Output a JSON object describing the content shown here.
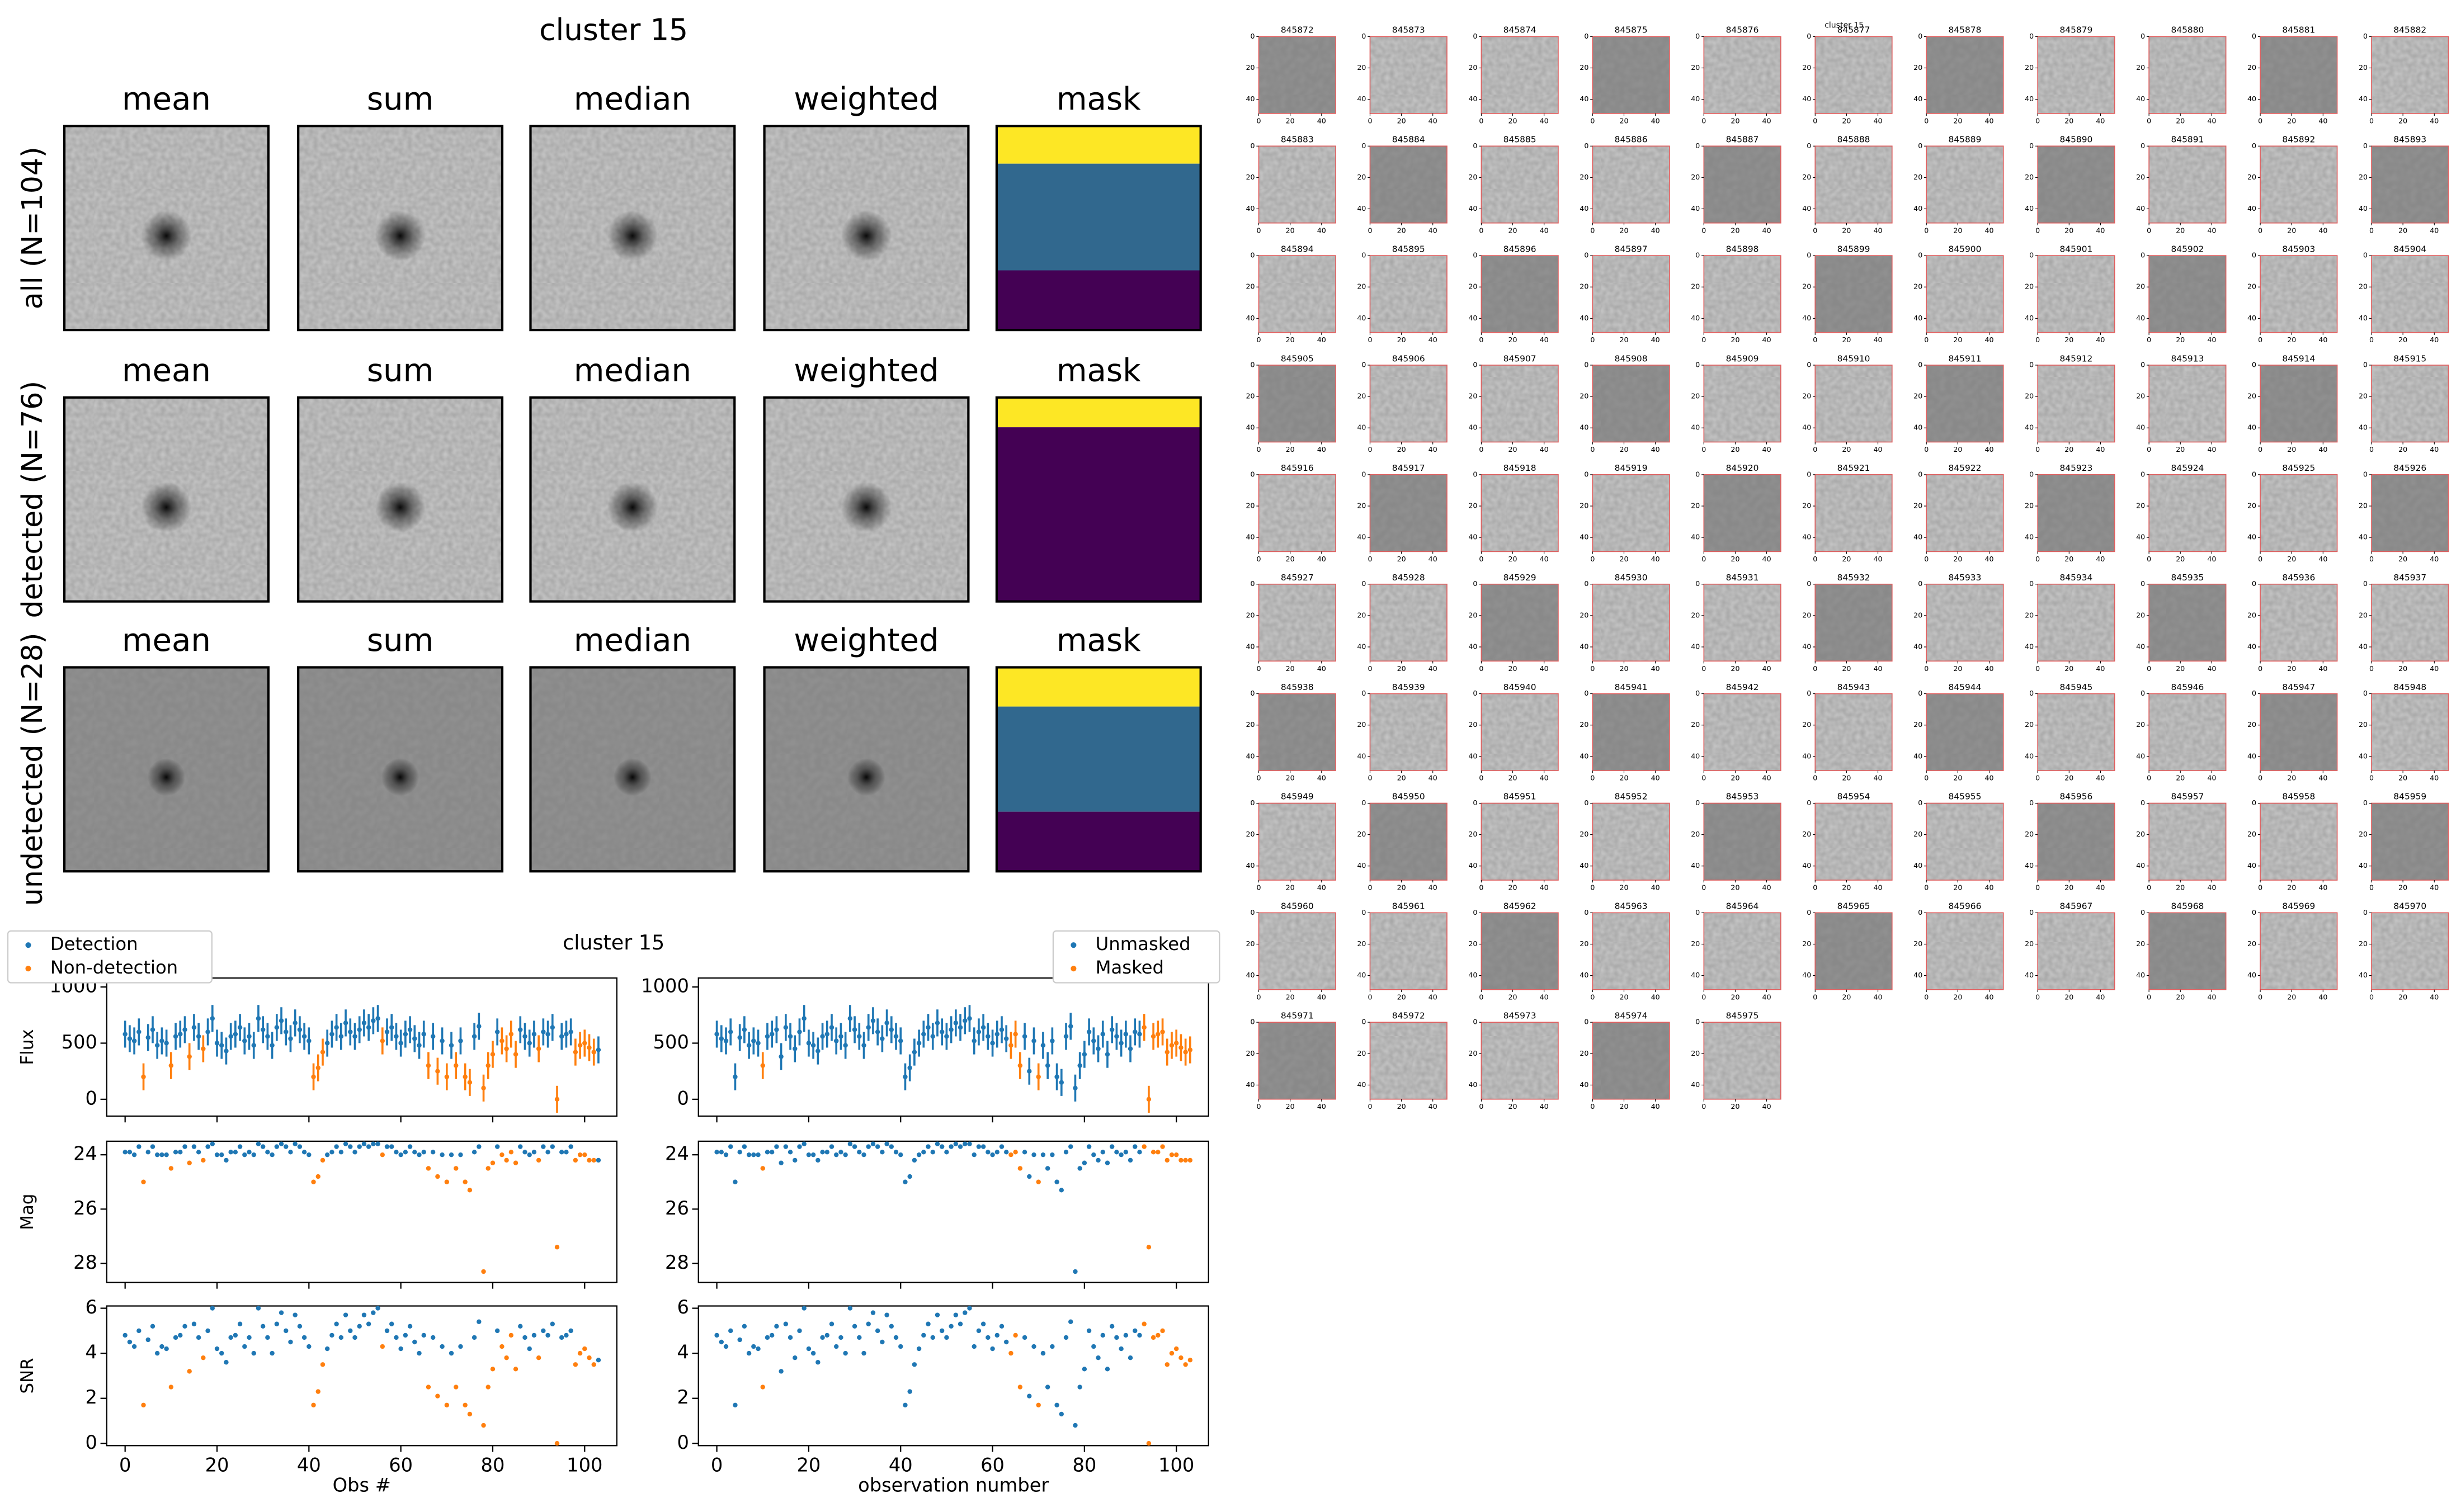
{
  "chart_data": [
    {
      "type": "stamp-grid",
      "title": "cluster 15",
      "columns": [
        "mean",
        "sum",
        "median",
        "weighted",
        "mask"
      ],
      "rows": [
        "all (N=104)",
        "detected (N=76)",
        "undetected (N=28)"
      ]
    },
    {
      "type": "errorbar-scatter",
      "title": "cluster 15",
      "x": [
        0,
        1,
        2,
        3,
        4,
        5,
        6,
        7,
        8,
        9,
        10,
        11,
        12,
        13,
        14,
        15,
        16,
        17,
        18,
        19,
        20,
        21,
        22,
        23,
        24,
        25,
        26,
        27,
        28,
        29,
        30,
        31,
        32,
        33,
        34,
        35,
        36,
        37,
        38,
        39,
        40,
        41,
        42,
        43,
        44,
        45,
        46,
        47,
        48,
        49,
        50,
        51,
        52,
        53,
        54,
        55,
        56,
        57,
        58,
        59,
        60,
        61,
        62,
        63,
        64,
        65,
        66,
        67,
        68,
        69,
        70,
        71,
        72,
        73,
        74,
        75,
        76,
        77,
        78,
        79,
        80,
        81,
        82,
        83,
        84,
        85,
        86,
        87,
        88,
        89,
        90,
        91,
        92,
        93,
        94,
        95,
        96,
        97,
        98,
        99,
        100,
        101,
        102,
        103
      ],
      "flux": [
        580,
        540,
        520,
        600,
        200,
        550,
        620,
        480,
        520,
        500,
        300,
        560,
        580,
        620,
        380,
        640,
        560,
        450,
        600,
        720,
        500,
        480,
        430,
        560,
        580,
        640,
        520,
        560,
        480,
        720,
        620,
        560,
        480,
        640,
        700,
        600,
        540,
        680,
        620,
        560,
        520,
        200,
        280,
        420,
        500,
        580,
        640,
        560,
        680,
        600,
        560,
        620,
        680,
        640,
        700,
        720,
        520,
        600,
        640,
        560,
        500,
        580,
        620,
        540,
        480,
        580,
        300,
        560,
        250,
        520,
        200,
        480,
        300,
        520,
        200,
        150,
        560,
        650,
        100,
        300,
        400,
        600,
        520,
        450,
        580,
        400,
        620,
        560,
        500,
        580,
        450,
        600,
        580,
        640,
        0,
        560,
        580,
        600,
        420,
        480,
        500,
        460,
        420,
        440
      ],
      "flux_err": [
        120,
        120,
        120,
        120,
        120,
        120,
        120,
        120,
        120,
        120,
        120,
        120,
        120,
        120,
        120,
        120,
        120,
        120,
        120,
        120,
        120,
        120,
        120,
        120,
        120,
        120,
        120,
        120,
        120,
        120,
        120,
        120,
        120,
        120,
        120,
        120,
        120,
        120,
        120,
        120,
        120,
        120,
        120,
        120,
        120,
        120,
        120,
        120,
        120,
        120,
        120,
        120,
        120,
        120,
        120,
        120,
        120,
        120,
        120,
        120,
        120,
        120,
        120,
        120,
        120,
        120,
        120,
        120,
        120,
        120,
        120,
        120,
        120,
        120,
        120,
        120,
        120,
        120,
        120,
        120,
        120,
        120,
        120,
        120,
        120,
        120,
        120,
        120,
        120,
        120,
        120,
        120,
        120,
        120,
        120,
        120,
        120,
        120,
        120,
        120,
        120,
        120,
        120,
        120
      ],
      "mag": [
        23.9,
        23.9,
        24.0,
        23.7,
        25.0,
        23.9,
        23.7,
        24.0,
        24.0,
        24.0,
        24.5,
        23.9,
        23.9,
        23.7,
        24.3,
        23.7,
        23.9,
        24.2,
        23.7,
        23.6,
        24.0,
        24.0,
        24.2,
        23.9,
        23.9,
        23.7,
        24.0,
        23.9,
        24.0,
        23.6,
        23.7,
        23.9,
        24.0,
        23.7,
        23.6,
        23.7,
        23.9,
        23.6,
        23.7,
        23.9,
        24.0,
        25.0,
        24.8,
        24.2,
        24.0,
        23.9,
        23.7,
        23.9,
        23.6,
        23.7,
        23.9,
        23.7,
        23.6,
        23.7,
        23.6,
        23.6,
        24.0,
        23.7,
        23.7,
        23.9,
        24.0,
        23.9,
        23.7,
        23.9,
        24.0,
        23.9,
        24.5,
        23.9,
        24.8,
        24.0,
        25.0,
        24.0,
        24.5,
        24.0,
        25.0,
        25.3,
        23.9,
        23.7,
        28.3,
        24.5,
        24.3,
        23.7,
        24.0,
        24.2,
        23.9,
        24.3,
        23.7,
        23.9,
        24.0,
        23.9,
        24.2,
        23.7,
        23.9,
        23.7,
        27.4,
        23.9,
        23.9,
        23.7,
        24.2,
        24.0,
        24.0,
        24.2,
        24.2,
        24.2
      ],
      "snr": [
        4.8,
        4.5,
        4.3,
        5.0,
        1.7,
        4.6,
        5.2,
        4.0,
        4.3,
        4.2,
        2.5,
        4.7,
        4.8,
        5.2,
        3.2,
        5.3,
        4.7,
        3.8,
        5.0,
        6.0,
        4.2,
        4.0,
        3.6,
        4.7,
        4.8,
        5.3,
        4.3,
        4.7,
        4.0,
        6.0,
        5.2,
        4.7,
        4.0,
        5.3,
        5.8,
        5.0,
        4.5,
        5.7,
        5.2,
        4.7,
        4.3,
        1.7,
        2.3,
        3.5,
        4.2,
        4.8,
        5.3,
        4.7,
        5.7,
        5.0,
        4.7,
        5.2,
        5.7,
        5.3,
        5.8,
        6.0,
        4.3,
        5.0,
        5.3,
        4.7,
        4.2,
        4.8,
        5.2,
        4.5,
        4.0,
        4.8,
        2.5,
        4.7,
        2.1,
        4.3,
        1.7,
        4.0,
        2.5,
        4.3,
        1.7,
        1.3,
        4.7,
        5.4,
        0.8,
        2.5,
        3.3,
        5.0,
        4.3,
        3.8,
        4.8,
        3.3,
        5.2,
        4.7,
        4.2,
        4.8,
        3.8,
        5.0,
        4.8,
        5.3,
        0,
        4.7,
        4.8,
        5.0,
        3.5,
        4.0,
        4.2,
        3.8,
        3.5,
        3.7
      ],
      "xlim": [
        -4,
        107
      ],
      "xticks": [
        0,
        20,
        40,
        60,
        80,
        100
      ],
      "flux_panel": {
        "ylabel": "Flux",
        "ylim": [
          -150,
          1080
        ],
        "yticks": [
          0,
          500,
          1000
        ]
      },
      "mag_panel": {
        "ylabel": "Mag",
        "ylim": [
          28.7,
          23.5
        ],
        "yticks": [
          24,
          26,
          28
        ]
      },
      "snr_panel": {
        "ylabel": "SNR",
        "ylim": [
          -0.1,
          6.1
        ],
        "yticks": [
          0,
          2,
          4,
          6
        ]
      },
      "left": {
        "xlabel": "Obs #",
        "legend": [
          {
            "name": "Detection",
            "color": "#1f77b4"
          },
          {
            "name": "Non-detection",
            "color": "#ff7f0e"
          }
        ],
        "group": [
          0,
          0,
          0,
          0,
          1,
          0,
          0,
          0,
          0,
          0,
          1,
          0,
          0,
          0,
          1,
          0,
          0,
          1,
          0,
          0,
          0,
          0,
          0,
          0,
          0,
          0,
          0,
          0,
          0,
          0,
          0,
          0,
          0,
          0,
          0,
          0,
          0,
          0,
          0,
          0,
          0,
          1,
          1,
          1,
          0,
          0,
          0,
          0,
          0,
          0,
          0,
          0,
          0,
          0,
          0,
          0,
          1,
          0,
          0,
          0,
          0,
          0,
          0,
          0,
          0,
          0,
          1,
          0,
          1,
          0,
          1,
          0,
          1,
          0,
          1,
          1,
          0,
          0,
          1,
          1,
          1,
          0,
          1,
          1,
          1,
          1,
          0,
          0,
          0,
          0,
          1,
          0,
          0,
          0,
          1,
          0,
          0,
          0,
          1,
          1,
          1,
          1,
          1,
          0
        ]
      },
      "right": {
        "xlabel": "observation number",
        "legend": [
          {
            "name": "Unmasked",
            "color": "#1f77b4"
          },
          {
            "name": "Masked",
            "color": "#ff7f0e"
          }
        ],
        "group": [
          0,
          0,
          0,
          0,
          0,
          0,
          0,
          0,
          0,
          0,
          1,
          0,
          0,
          0,
          0,
          0,
          0,
          0,
          0,
          0,
          0,
          0,
          0,
          0,
          0,
          0,
          0,
          0,
          0,
          0,
          0,
          0,
          0,
          0,
          0,
          0,
          0,
          0,
          0,
          0,
          0,
          0,
          0,
          0,
          0,
          0,
          0,
          0,
          0,
          0,
          0,
          0,
          0,
          0,
          0,
          0,
          0,
          0,
          0,
          0,
          0,
          0,
          0,
          0,
          1,
          1,
          1,
          0,
          0,
          0,
          1,
          0,
          0,
          0,
          0,
          0,
          0,
          0,
          0,
          0,
          0,
          0,
          0,
          0,
          0,
          0,
          0,
          0,
          0,
          0,
          0,
          0,
          0,
          1,
          1,
          1,
          1,
          1,
          1,
          1,
          1,
          1,
          1,
          1
        ]
      }
    },
    {
      "type": "thumbnail-grid",
      "title": "cluster 15",
      "labels": [
        845872,
        845873,
        845874,
        845875,
        845876,
        845877,
        845878,
        845879,
        845880,
        845881,
        845882,
        845883,
        845884,
        845885,
        845886,
        845887,
        845888,
        845889,
        845890,
        845891,
        845892,
        845893,
        845894,
        845895,
        845896,
        845897,
        845898,
        845899,
        845900,
        845901,
        845902,
        845903,
        845904,
        845905,
        845906,
        845907,
        845908,
        845909,
        845910,
        845911,
        845912,
        845913,
        845914,
        845915,
        845916,
        845917,
        845918,
        845919,
        845920,
        845921,
        845922,
        845923,
        845924,
        845925,
        845926,
        845927,
        845928,
        845929,
        845930,
        845931,
        845932,
        845933,
        845934,
        845935,
        845936,
        845937,
        845938,
        845939,
        845940,
        845941,
        845942,
        845943,
        845944,
        845945,
        845946,
        845947,
        845948,
        845949,
        845950,
        845951,
        845952,
        845953,
        845954,
        845955,
        845956,
        845957,
        845958,
        845959,
        845960,
        845961,
        845962,
        845963,
        845964,
        845965,
        845966,
        845967,
        845968,
        845969,
        845970,
        845971,
        845972,
        845973,
        845974,
        845975
      ],
      "lim": [
        0,
        49
      ],
      "ticks": [
        0,
        20,
        40
      ]
    }
  ]
}
